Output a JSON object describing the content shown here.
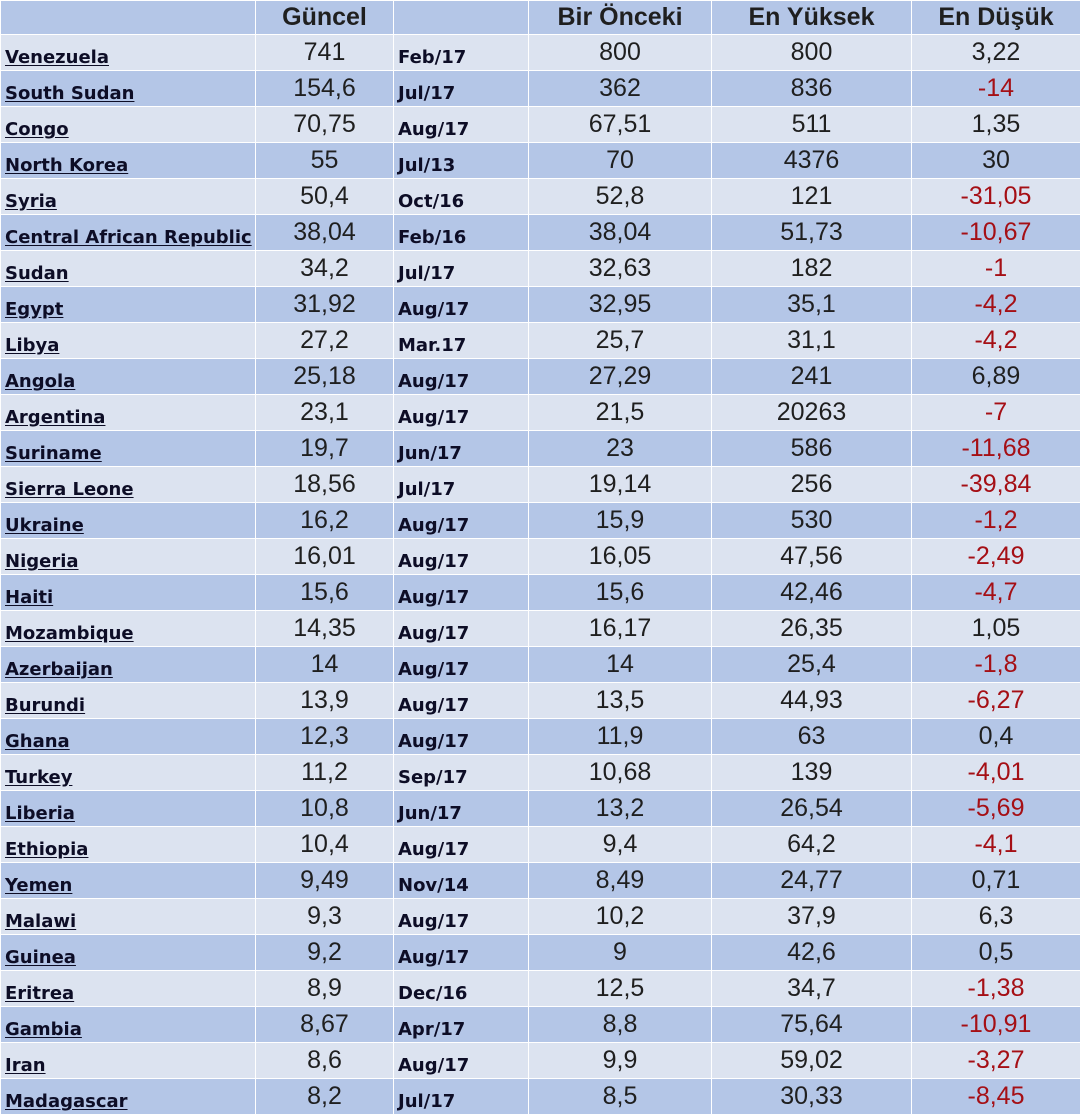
{
  "headers": {
    "country": "",
    "guncel": "Güncel",
    "date": "",
    "prev": "Bir Önceki",
    "high": "En Yüksek",
    "low": "En Düşük"
  },
  "colors": {
    "row_light": "#dce3f0",
    "row_dark": "#b4c6e7",
    "negative": "#a50f15"
  },
  "rows": [
    {
      "country": "Venezuela",
      "guncel": "741",
      "date": "Feb/17",
      "prev": "800",
      "high": "800",
      "low": "3,22"
    },
    {
      "country": "South Sudan",
      "guncel": "154,6",
      "date": "Jul/17",
      "prev": "362",
      "high": "836",
      "low": "-14"
    },
    {
      "country": "Congo",
      "guncel": "70,75",
      "date": "Aug/17",
      "prev": "67,51",
      "high": "511",
      "low": "1,35"
    },
    {
      "country": "North Korea",
      "guncel": "55",
      "date": "Jul/13",
      "prev": "70",
      "high": "4376",
      "low": "30"
    },
    {
      "country": "Syria",
      "guncel": "50,4",
      "date": "Oct/16",
      "prev": "52,8",
      "high": "121",
      "low": "-31,05"
    },
    {
      "country": "Central African Republic",
      "guncel": "38,04",
      "date": "Feb/16",
      "prev": "38,04",
      "high": "51,73",
      "low": "-10,67"
    },
    {
      "country": "Sudan",
      "guncel": "34,2",
      "date": "Jul/17",
      "prev": "32,63",
      "high": "182",
      "low": "-1"
    },
    {
      "country": "Egypt",
      "guncel": "31,92",
      "date": "Aug/17",
      "prev": "32,95",
      "high": "35,1",
      "low": "-4,2"
    },
    {
      "country": "Libya",
      "guncel": "27,2",
      "date": "Mar.17",
      "prev": "25,7",
      "high": "31,1",
      "low": "-4,2"
    },
    {
      "country": "Angola",
      "guncel": "25,18",
      "date": "Aug/17",
      "prev": "27,29",
      "high": "241",
      "low": "6,89"
    },
    {
      "country": "Argentina",
      "guncel": "23,1",
      "date": "Aug/17",
      "prev": "21,5",
      "high": "20263",
      "low": "-7"
    },
    {
      "country": "Suriname",
      "guncel": "19,7",
      "date": "Jun/17",
      "prev": "23",
      "high": "586",
      "low": "-11,68"
    },
    {
      "country": "Sierra Leone",
      "guncel": "18,56",
      "date": "Jul/17",
      "prev": "19,14",
      "high": "256",
      "low": "-39,84"
    },
    {
      "country": "Ukraine",
      "guncel": "16,2",
      "date": "Aug/17",
      "prev": "15,9",
      "high": "530",
      "low": "-1,2"
    },
    {
      "country": "Nigeria",
      "guncel": "16,01",
      "date": "Aug/17",
      "prev": "16,05",
      "high": "47,56",
      "low": "-2,49"
    },
    {
      "country": "Haiti",
      "guncel": "15,6",
      "date": "Aug/17",
      "prev": "15,6",
      "high": "42,46",
      "low": "-4,7"
    },
    {
      "country": "Mozambique",
      "guncel": "14,35",
      "date": "Aug/17",
      "prev": "16,17",
      "high": "26,35",
      "low": "1,05"
    },
    {
      "country": "Azerbaijan",
      "guncel": "14",
      "date": "Aug/17",
      "prev": "14",
      "high": "25,4",
      "low": "-1,8"
    },
    {
      "country": "Burundi",
      "guncel": "13,9",
      "date": "Aug/17",
      "prev": "13,5",
      "high": "44,93",
      "low": "-6,27"
    },
    {
      "country": "Ghana",
      "guncel": "12,3",
      "date": "Aug/17",
      "prev": "11,9",
      "high": "63",
      "low": "0,4"
    },
    {
      "country": "Turkey",
      "guncel": "11,2",
      "date": "Sep/17",
      "prev": "10,68",
      "high": "139",
      "low": "-4,01"
    },
    {
      "country": "Liberia",
      "guncel": "10,8",
      "date": "Jun/17",
      "prev": "13,2",
      "high": "26,54",
      "low": "-5,69"
    },
    {
      "country": "Ethiopia",
      "guncel": "10,4",
      "date": "Aug/17",
      "prev": "9,4",
      "high": "64,2",
      "low": "-4,1"
    },
    {
      "country": "Yemen",
      "guncel": "9,49",
      "date": "Nov/14",
      "prev": "8,49",
      "high": "24,77",
      "low": "0,71"
    },
    {
      "country": "Malawi",
      "guncel": "9,3",
      "date": "Aug/17",
      "prev": "10,2",
      "high": "37,9",
      "low": "6,3"
    },
    {
      "country": "Guinea",
      "guncel": "9,2",
      "date": "Aug/17",
      "prev": "9",
      "high": "42,6",
      "low": "0,5"
    },
    {
      "country": "Eritrea",
      "guncel": "8,9",
      "date": "Dec/16",
      "prev": "12,5",
      "high": "34,7",
      "low": "-1,38"
    },
    {
      "country": "Gambia",
      "guncel": "8,67",
      "date": "Apr/17",
      "prev": "8,8",
      "high": "75,64",
      "low": "-10,91"
    },
    {
      "country": "Iran",
      "guncel": "8,6",
      "date": "Aug/17",
      "prev": "9,9",
      "high": "59,02",
      "low": "-3,27"
    },
    {
      "country": "Madagascar",
      "guncel": "8,2",
      "date": "Jul/17",
      "prev": "8,5",
      "high": "30,33",
      "low": "-8,45"
    }
  ]
}
